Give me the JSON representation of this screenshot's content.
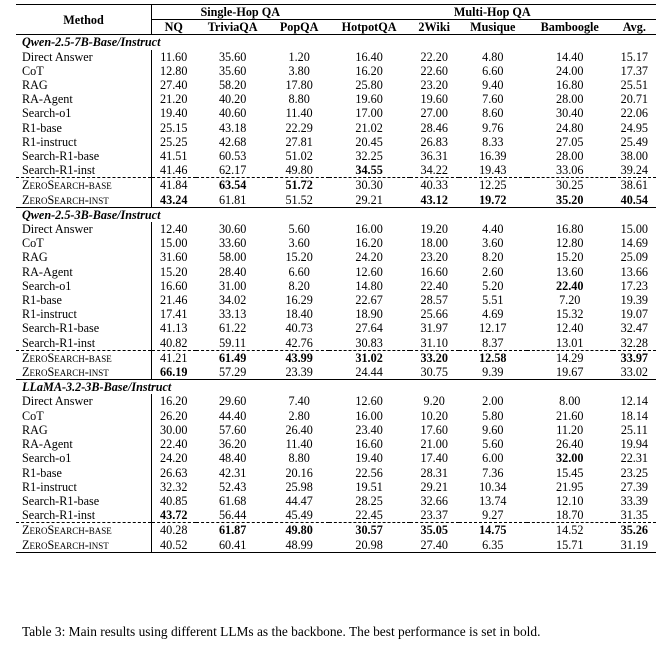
{
  "headers": {
    "method": "Method",
    "single_hop": "Single-Hop QA",
    "multi_hop": "Multi-Hop QA",
    "cols": [
      "NQ",
      "TriviaQA",
      "PopQA",
      "HotpotQA",
      "2Wiki",
      "Musique",
      "Bamboogle",
      "Avg."
    ]
  },
  "sections": [
    {
      "title": "Qwen-2.5-7B-Base/Instruct",
      "rows": [
        {
          "name": "Direct Answer",
          "values": [
            "11.60",
            "35.60",
            "1.20",
            "16.40",
            "22.20",
            "4.80",
            "14.40",
            "15.17"
          ],
          "bold": []
        },
        {
          "name": "CoT",
          "values": [
            "12.80",
            "35.60",
            "3.80",
            "16.20",
            "22.60",
            "6.60",
            "24.00",
            "17.37"
          ],
          "bold": []
        },
        {
          "name": "RAG",
          "values": [
            "27.40",
            "58.20",
            "17.80",
            "25.80",
            "23.20",
            "9.40",
            "16.80",
            "25.51"
          ],
          "bold": []
        },
        {
          "name": "RA-Agent",
          "values": [
            "21.20",
            "40.20",
            "8.80",
            "19.60",
            "19.60",
            "7.60",
            "28.00",
            "20.71"
          ],
          "bold": []
        },
        {
          "name": "Search-o1",
          "values": [
            "19.40",
            "40.60",
            "11.40",
            "17.00",
            "27.00",
            "8.60",
            "30.40",
            "22.06"
          ],
          "bold": []
        },
        {
          "name": "R1-base",
          "values": [
            "25.15",
            "43.18",
            "22.29",
            "21.02",
            "28.46",
            "9.76",
            "24.80",
            "24.95"
          ],
          "bold": []
        },
        {
          "name": "R1-instruct",
          "values": [
            "25.25",
            "42.68",
            "27.81",
            "20.45",
            "26.83",
            "8.33",
            "27.05",
            "25.49"
          ],
          "bold": []
        },
        {
          "name": "Search-R1-base",
          "values": [
            "41.51",
            "60.53",
            "51.02",
            "32.25",
            "36.31",
            "16.39",
            "28.00",
            "38.00"
          ],
          "bold": []
        },
        {
          "name": "Search-R1-inst",
          "values": [
            "41.46",
            "62.17",
            "49.80",
            "34.55",
            "34.22",
            "19.43",
            "33.06",
            "39.24"
          ],
          "bold": [
            3
          ]
        },
        {
          "name": "ZeroSearch-base",
          "values": [
            "41.84",
            "63.54",
            "51.72",
            "30.30",
            "40.33",
            "12.25",
            "30.25",
            "38.61"
          ],
          "bold": [
            1,
            2
          ],
          "zs": true,
          "dash": true
        },
        {
          "name": "ZeroSearch-inst",
          "values": [
            "43.24",
            "61.81",
            "51.52",
            "29.21",
            "43.12",
            "19.72",
            "35.20",
            "40.54"
          ],
          "bold": [
            0,
            4,
            5,
            6,
            7
          ],
          "zs": true
        }
      ]
    },
    {
      "title": "Qwen-2.5-3B-Base/Instruct",
      "rows": [
        {
          "name": "Direct Answer",
          "values": [
            "12.40",
            "30.60",
            "5.60",
            "16.00",
            "19.20",
            "4.40",
            "16.80",
            "15.00"
          ],
          "bold": []
        },
        {
          "name": "CoT",
          "values": [
            "15.00",
            "33.60",
            "3.60",
            "16.20",
            "18.00",
            "3.60",
            "12.80",
            "14.69"
          ],
          "bold": []
        },
        {
          "name": "RAG",
          "values": [
            "31.60",
            "58.00",
            "15.20",
            "24.20",
            "23.20",
            "8.20",
            "15.20",
            "25.09"
          ],
          "bold": []
        },
        {
          "name": "RA-Agent",
          "values": [
            "15.20",
            "28.40",
            "6.60",
            "12.60",
            "16.60",
            "2.60",
            "13.60",
            "13.66"
          ],
          "bold": []
        },
        {
          "name": "Search-o1",
          "values": [
            "16.60",
            "31.00",
            "8.20",
            "14.80",
            "22.40",
            "5.20",
            "22.40",
            "17.23"
          ],
          "bold": [
            6
          ]
        },
        {
          "name": "R1-base",
          "values": [
            "21.46",
            "34.02",
            "16.29",
            "22.67",
            "28.57",
            "5.51",
            "7.20",
            "19.39"
          ],
          "bold": []
        },
        {
          "name": "R1-instruct",
          "values": [
            "17.41",
            "33.13",
            "18.40",
            "18.90",
            "25.66",
            "4.69",
            "15.32",
            "19.07"
          ],
          "bold": []
        },
        {
          "name": "Search-R1-base",
          "values": [
            "41.13",
            "61.22",
            "40.73",
            "27.64",
            "31.97",
            "12.17",
            "12.40",
            "32.47"
          ],
          "bold": []
        },
        {
          "name": "Search-R1-inst",
          "values": [
            "40.82",
            "59.11",
            "42.76",
            "30.83",
            "31.10",
            "8.37",
            "13.01",
            "32.28"
          ],
          "bold": []
        },
        {
          "name": "ZeroSearch-base",
          "values": [
            "41.21",
            "61.49",
            "43.99",
            "31.02",
            "33.20",
            "12.58",
            "14.29",
            "33.97"
          ],
          "bold": [
            1,
            2,
            3,
            4,
            5,
            7
          ],
          "zs": true,
          "dash": true
        },
        {
          "name": "ZeroSearch-inst",
          "values": [
            "66.19",
            "57.29",
            "23.39",
            "24.44",
            "30.75",
            "9.39",
            "19.67",
            "33.02"
          ],
          "bold": [
            0
          ],
          "zs": true
        }
      ]
    },
    {
      "title": "LLaMA-3.2-3B-Base/Instruct",
      "rows": [
        {
          "name": "Direct Answer",
          "values": [
            "16.20",
            "29.60",
            "7.40",
            "12.60",
            "9.20",
            "2.00",
            "8.00",
            "12.14"
          ],
          "bold": []
        },
        {
          "name": "CoT",
          "values": [
            "26.20",
            "44.40",
            "2.80",
            "16.00",
            "10.20",
            "5.80",
            "21.60",
            "18.14"
          ],
          "bold": []
        },
        {
          "name": "RAG",
          "values": [
            "30.00",
            "57.60",
            "26.40",
            "23.40",
            "17.60",
            "9.60",
            "11.20",
            "25.11"
          ],
          "bold": []
        },
        {
          "name": "RA-Agent",
          "values": [
            "22.40",
            "36.20",
            "11.40",
            "16.60",
            "21.00",
            "5.60",
            "26.40",
            "19.94"
          ],
          "bold": []
        },
        {
          "name": "Search-o1",
          "values": [
            "24.20",
            "48.40",
            "8.80",
            "19.40",
            "17.40",
            "6.00",
            "32.00",
            "22.31"
          ],
          "bold": [
            6
          ]
        },
        {
          "name": "R1-base",
          "values": [
            "26.63",
            "42.31",
            "20.16",
            "22.56",
            "28.31",
            "7.36",
            "15.45",
            "23.25"
          ],
          "bold": []
        },
        {
          "name": "R1-instruct",
          "values": [
            "32.32",
            "52.43",
            "25.98",
            "19.51",
            "29.21",
            "10.34",
            "21.95",
            "27.39"
          ],
          "bold": []
        },
        {
          "name": "Search-R1-base",
          "values": [
            "40.85",
            "61.68",
            "44.47",
            "28.25",
            "32.66",
            "13.74",
            "12.10",
            "33.39"
          ],
          "bold": []
        },
        {
          "name": "Search-R1-inst",
          "values": [
            "43.72",
            "56.44",
            "45.49",
            "22.45",
            "23.37",
            "9.27",
            "18.70",
            "31.35"
          ],
          "bold": [
            0
          ]
        },
        {
          "name": "ZeroSearch-base",
          "values": [
            "40.28",
            "61.87",
            "49.80",
            "30.57",
            "35.05",
            "14.75",
            "14.52",
            "35.26"
          ],
          "bold": [
            1,
            2,
            3,
            4,
            5,
            7
          ],
          "zs": true,
          "dash": true
        },
        {
          "name": "ZeroSearch-inst",
          "values": [
            "40.52",
            "60.41",
            "48.99",
            "20.98",
            "27.40",
            "6.35",
            "15.71",
            "31.19"
          ],
          "bold": [],
          "zs": true
        }
      ]
    }
  ],
  "caption": "Table 3: Main results using different LLMs as the backbone. The best performance is set in bold."
}
